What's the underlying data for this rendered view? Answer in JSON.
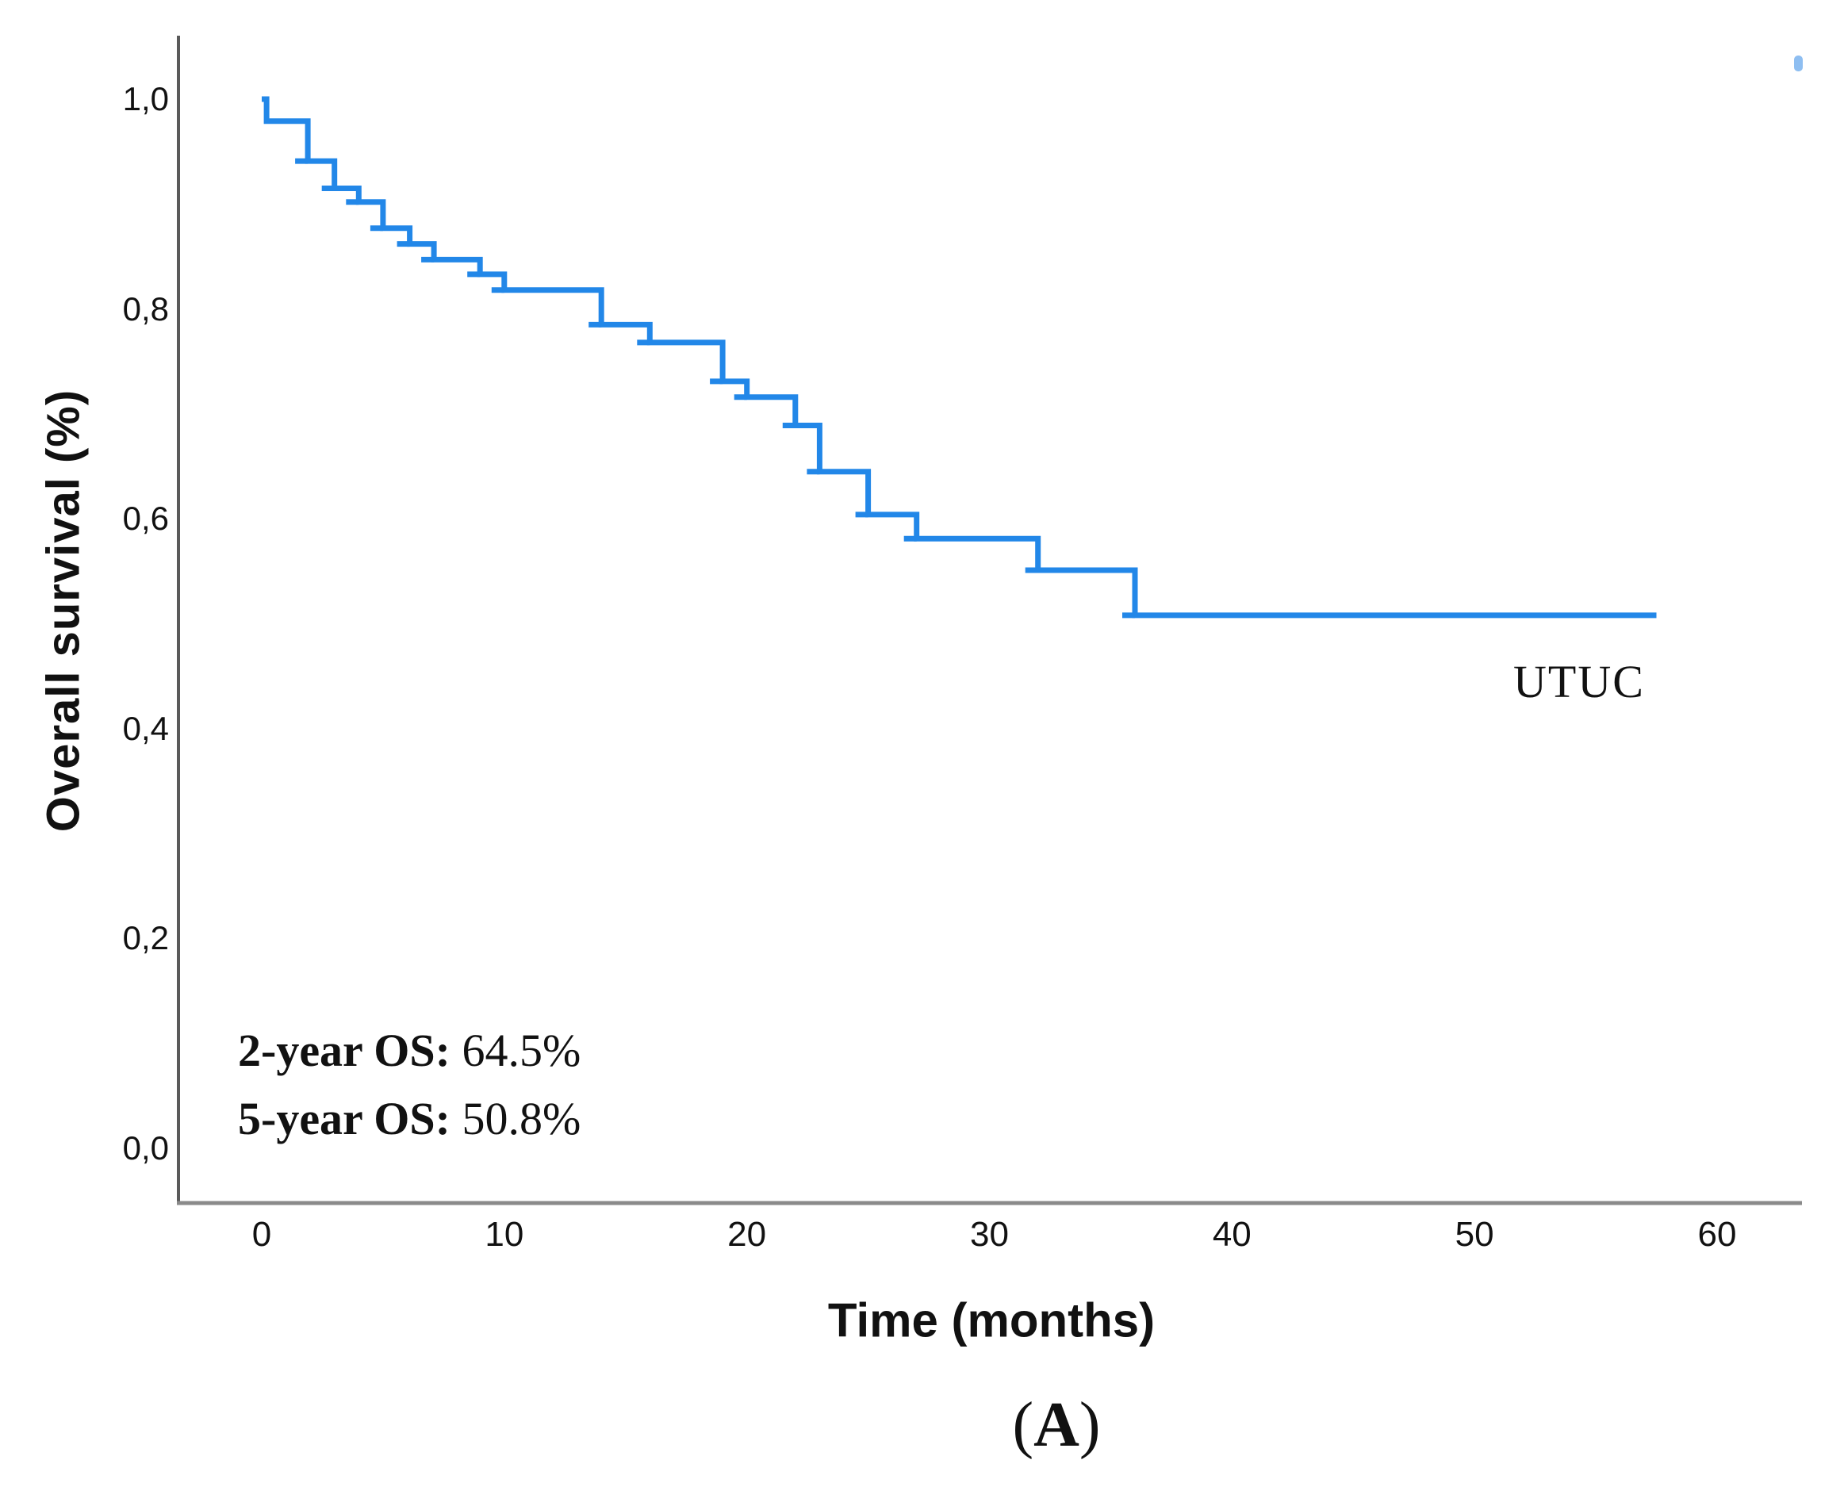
{
  "figure": {
    "curve_label": "UTUC",
    "panel": {
      "open": "(",
      "letter": "A",
      "close": ")"
    },
    "os_lines": [
      {
        "label": "2-year OS:",
        "value": "64.5%"
      },
      {
        "label": "5-year OS:",
        "value": "50.8%"
      }
    ]
  },
  "chart_data": {
    "type": "line",
    "subtype": "kaplan_meier_step_curve",
    "title": "",
    "xlabel": "Time (months)",
    "ylabel": "Overall survival (%)",
    "xlim": [
      0,
      63
    ],
    "ylim": [
      0,
      1.05
    ],
    "grid": false,
    "legend_position": "in-plot text label near curve tail",
    "x_ticks": {
      "values": [
        0,
        10,
        20,
        30,
        40,
        50,
        60
      ],
      "labels": [
        "0",
        "10",
        "20",
        "30",
        "40",
        "50",
        "60"
      ]
    },
    "y_ticks": {
      "values": [
        0,
        0.2,
        0.4,
        0.6,
        0.8,
        1.0
      ],
      "labels": [
        "0,0",
        "0,2",
        "0,4",
        "0,6",
        "0,8",
        "1,0"
      ]
    },
    "series": [
      {
        "name": "UTUC",
        "color": "#2287E8",
        "style": "step-post",
        "points": [
          [
            0,
            1.0
          ],
          [
            0.2,
            0.979
          ],
          [
            1.9,
            0.941
          ],
          [
            3.0,
            0.915
          ],
          [
            4.0,
            0.902
          ],
          [
            5.0,
            0.877
          ],
          [
            6.1,
            0.862
          ],
          [
            7.1,
            0.847
          ],
          [
            9.0,
            0.833
          ],
          [
            10.0,
            0.818
          ],
          [
            14.0,
            0.785
          ],
          [
            16.0,
            0.768
          ],
          [
            19.0,
            0.731
          ],
          [
            20.0,
            0.716
          ],
          [
            22.0,
            0.689
          ],
          [
            23.0,
            0.645
          ],
          [
            25.0,
            0.604
          ],
          [
            27.0,
            0.581
          ],
          [
            32.0,
            0.551
          ],
          [
            36.0,
            0.508
          ]
        ],
        "end_time": 57.5
      }
    ],
    "annotations": {
      "two_year_os": "64.5%",
      "five_year_os": "50.8%"
    },
    "axis_colors": {
      "y_axis": "#5a5a5a",
      "x_axis": "#8a8a8a"
    }
  }
}
